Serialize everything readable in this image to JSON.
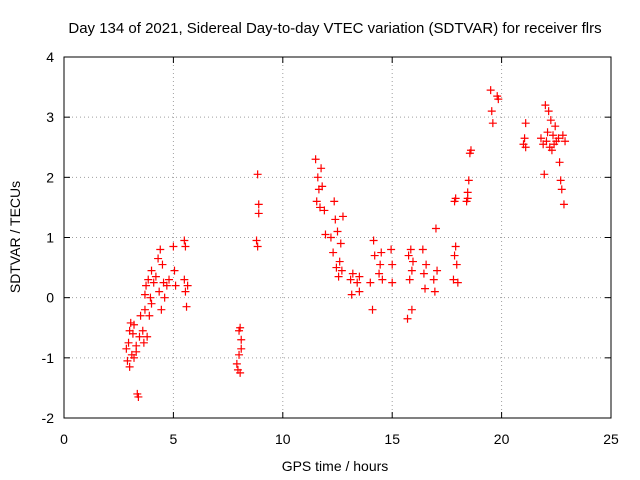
{
  "chart_data": {
    "type": "scatter",
    "title": "Day 134 of 2021, Sidereal Day-to-day VTEC variation (SDTVAR) for receiver flrs",
    "xlabel": "GPS time / hours",
    "ylabel": "SDTVAR / TECUs",
    "xlim": [
      0,
      25
    ],
    "ylim": [
      -2,
      4
    ],
    "xticks": [
      "0",
      "5",
      "10",
      "15",
      "20",
      "25"
    ],
    "yticks": [
      "-2",
      "-1",
      "0",
      "1",
      "2",
      "3",
      "4"
    ],
    "grid": true,
    "marker": "+",
    "color": "#ff0000",
    "series": [
      {
        "name": "SDTVAR",
        "points": [
          [
            2.85,
            -0.85
          ],
          [
            2.9,
            -1.05
          ],
          [
            2.95,
            -0.75
          ],
          [
            3.0,
            -0.55
          ],
          [
            3.0,
            -1.15
          ],
          [
            3.05,
            -0.42
          ],
          [
            3.1,
            -0.95
          ],
          [
            3.15,
            -0.6
          ],
          [
            3.2,
            -0.45
          ],
          [
            3.2,
            -1.0
          ],
          [
            3.3,
            -0.8
          ],
          [
            3.3,
            -0.9
          ],
          [
            3.35,
            -1.6
          ],
          [
            3.4,
            -1.65
          ],
          [
            3.45,
            -0.65
          ],
          [
            3.5,
            -0.3
          ],
          [
            3.6,
            -0.55
          ],
          [
            3.65,
            -0.75
          ],
          [
            3.7,
            0.05
          ],
          [
            3.7,
            -0.2
          ],
          [
            3.75,
            0.2
          ],
          [
            3.8,
            -0.65
          ],
          [
            3.85,
            0.3
          ],
          [
            3.9,
            -0.3
          ],
          [
            3.95,
            0.0
          ],
          [
            4.0,
            0.45
          ],
          [
            4.0,
            -0.1
          ],
          [
            4.1,
            0.25
          ],
          [
            4.2,
            0.35
          ],
          [
            4.3,
            0.65
          ],
          [
            4.35,
            0.1
          ],
          [
            4.4,
            0.8
          ],
          [
            4.45,
            -0.2
          ],
          [
            4.5,
            0.55
          ],
          [
            4.55,
            0.25
          ],
          [
            4.6,
            0.0
          ],
          [
            4.7,
            0.2
          ],
          [
            4.8,
            0.3
          ],
          [
            5.0,
            0.85
          ],
          [
            5.05,
            0.45
          ],
          [
            5.1,
            0.2
          ],
          [
            5.5,
            0.95
          ],
          [
            5.55,
            0.85
          ],
          [
            5.5,
            0.3
          ],
          [
            5.55,
            0.1
          ],
          [
            5.6,
            -0.15
          ],
          [
            5.65,
            0.2
          ],
          [
            7.9,
            -1.1
          ],
          [
            7.95,
            -1.2
          ],
          [
            8.0,
            -0.95
          ],
          [
            8.05,
            -1.25
          ],
          [
            8.0,
            -0.55
          ],
          [
            8.05,
            -0.5
          ],
          [
            8.1,
            -0.7
          ],
          [
            8.1,
            -0.85
          ],
          [
            8.8,
            0.95
          ],
          [
            8.85,
            0.85
          ],
          [
            8.9,
            1.4
          ],
          [
            8.85,
            2.05
          ],
          [
            8.9,
            1.55
          ],
          [
            11.5,
            2.3
          ],
          [
            11.55,
            1.6
          ],
          [
            11.6,
            2.0
          ],
          [
            11.65,
            1.8
          ],
          [
            11.7,
            1.5
          ],
          [
            11.75,
            2.15
          ],
          [
            11.8,
            1.85
          ],
          [
            11.9,
            1.45
          ],
          [
            11.95,
            1.05
          ],
          [
            12.2,
            1.0
          ],
          [
            12.3,
            0.75
          ],
          [
            12.35,
            1.6
          ],
          [
            12.4,
            1.3
          ],
          [
            12.45,
            0.5
          ],
          [
            12.5,
            1.1
          ],
          [
            12.55,
            0.35
          ],
          [
            12.6,
            0.6
          ],
          [
            12.65,
            0.9
          ],
          [
            12.7,
            0.45
          ],
          [
            12.75,
            1.35
          ],
          [
            13.1,
            0.3
          ],
          [
            13.15,
            0.05
          ],
          [
            13.2,
            0.4
          ],
          [
            13.4,
            0.25
          ],
          [
            13.5,
            0.1
          ],
          [
            13.5,
            0.35
          ],
          [
            14.0,
            0.25
          ],
          [
            14.1,
            -0.2
          ],
          [
            14.15,
            0.95
          ],
          [
            14.2,
            0.7
          ],
          [
            14.4,
            0.4
          ],
          [
            14.45,
            0.55
          ],
          [
            14.5,
            0.75
          ],
          [
            14.55,
            0.3
          ],
          [
            14.95,
            0.8
          ],
          [
            15.0,
            0.55
          ],
          [
            15.0,
            0.25
          ],
          [
            15.7,
            -0.35
          ],
          [
            15.75,
            0.7
          ],
          [
            15.8,
            0.3
          ],
          [
            15.85,
            0.8
          ],
          [
            15.9,
            0.45
          ],
          [
            15.9,
            -0.2
          ],
          [
            15.95,
            0.6
          ],
          [
            16.4,
            0.8
          ],
          [
            16.45,
            0.4
          ],
          [
            16.5,
            0.15
          ],
          [
            16.55,
            0.55
          ],
          [
            16.9,
            0.3
          ],
          [
            16.95,
            0.1
          ],
          [
            17.0,
            1.15
          ],
          [
            17.05,
            0.45
          ],
          [
            17.8,
            0.3
          ],
          [
            17.85,
            0.7
          ],
          [
            17.9,
            0.85
          ],
          [
            17.95,
            0.55
          ],
          [
            18.0,
            0.25
          ],
          [
            17.85,
            1.6
          ],
          [
            17.9,
            1.65
          ],
          [
            18.4,
            1.6
          ],
          [
            18.45,
            1.75
          ],
          [
            18.5,
            1.95
          ],
          [
            18.55,
            2.4
          ],
          [
            18.6,
            2.45
          ],
          [
            18.45,
            1.65
          ],
          [
            19.5,
            3.45
          ],
          [
            19.55,
            3.1
          ],
          [
            19.6,
            2.9
          ],
          [
            19.8,
            3.35
          ],
          [
            19.85,
            3.3
          ],
          [
            21.0,
            2.55
          ],
          [
            21.05,
            2.65
          ],
          [
            21.1,
            2.9
          ],
          [
            21.1,
            2.5
          ],
          [
            21.8,
            2.65
          ],
          [
            21.9,
            2.55
          ],
          [
            21.95,
            2.05
          ],
          [
            22.0,
            3.2
          ],
          [
            22.05,
            2.6
          ],
          [
            22.1,
            2.75
          ],
          [
            22.15,
            3.1
          ],
          [
            22.2,
            2.5
          ],
          [
            22.25,
            2.95
          ],
          [
            22.3,
            2.45
          ],
          [
            22.35,
            2.7
          ],
          [
            22.4,
            2.55
          ],
          [
            22.45,
            2.85
          ],
          [
            22.5,
            2.6
          ],
          [
            22.6,
            2.65
          ],
          [
            22.65,
            2.25
          ],
          [
            22.7,
            1.95
          ],
          [
            22.75,
            1.8
          ],
          [
            22.8,
            2.7
          ],
          [
            22.85,
            1.55
          ],
          [
            22.9,
            2.6
          ]
        ]
      }
    ]
  }
}
